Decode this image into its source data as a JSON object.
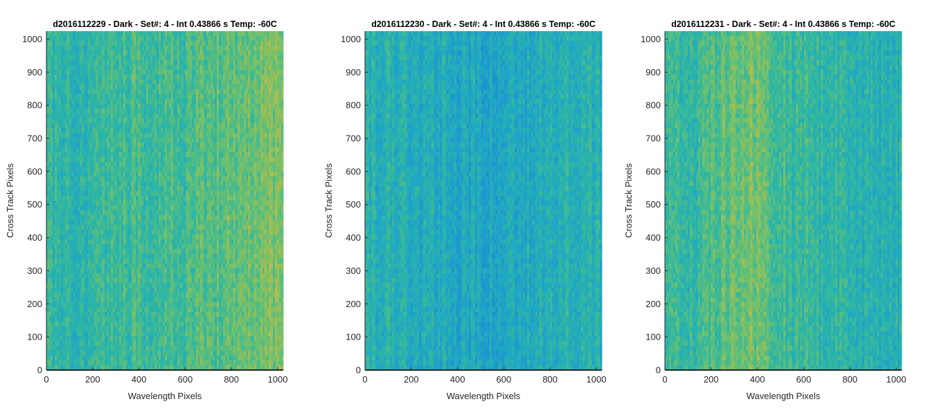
{
  "chart_data": [
    {
      "type": "heatmap",
      "title": "d2016112229 - Dark - Set#: 4 - Int 0.43866 s Temp: -60C",
      "xlabel": "Wavelength Pixels",
      "ylabel": "Cross Track Pixels",
      "xlim": [
        0,
        1024
      ],
      "ylim": [
        0,
        1024
      ],
      "xticks": [
        "0",
        "200",
        "400",
        "600",
        "800",
        "1000"
      ],
      "yticks": [
        "0",
        "100",
        "200",
        "300",
        "400",
        "500",
        "600",
        "700",
        "800",
        "900",
        "1000"
      ],
      "column_profile": {
        "x": [
          0,
          100,
          200,
          300,
          400,
          500,
          600,
          700,
          800,
          900,
          1024
        ],
        "level": [
          0.48,
          0.47,
          0.5,
          0.52,
          0.55,
          0.56,
          0.56,
          0.6,
          0.63,
          0.66,
          0.7
        ]
      }
    },
    {
      "type": "heatmap",
      "title": "d2016112230 - Dark - Set#: 4 - Int 0.43866 s Temp: -60C",
      "xlabel": "Wavelength Pixels",
      "ylabel": "Cross Track Pixels",
      "xlim": [
        0,
        1024
      ],
      "ylim": [
        0,
        1024
      ],
      "xticks": [
        "0",
        "200",
        "400",
        "600",
        "800",
        "1000"
      ],
      "yticks": [
        "0",
        "100",
        "200",
        "300",
        "400",
        "500",
        "600",
        "700",
        "800",
        "900",
        "1000"
      ],
      "column_profile": {
        "x": [
          0,
          100,
          200,
          300,
          400,
          500,
          600,
          700,
          800,
          900,
          1024
        ],
        "level": [
          0.44,
          0.43,
          0.41,
          0.39,
          0.37,
          0.35,
          0.36,
          0.38,
          0.41,
          0.43,
          0.44
        ]
      }
    },
    {
      "type": "heatmap",
      "title": "d2016112231 - Dark - Set#: 4 - Int 0.43866 s Temp: -60C",
      "xlabel": "Wavelength Pixels",
      "ylabel": "Cross Track Pixels",
      "xlim": [
        0,
        1024
      ],
      "ylim": [
        0,
        1024
      ],
      "xticks": [
        "0",
        "200",
        "400",
        "600",
        "800",
        "1000"
      ],
      "yticks": [
        "0",
        "100",
        "200",
        "300",
        "400",
        "500",
        "600",
        "700",
        "800",
        "900",
        "1000"
      ],
      "column_profile": {
        "x": [
          0,
          100,
          200,
          300,
          350,
          400,
          500,
          600,
          700,
          800,
          900,
          1024
        ],
        "level": [
          0.5,
          0.51,
          0.56,
          0.66,
          0.7,
          0.66,
          0.57,
          0.52,
          0.48,
          0.45,
          0.43,
          0.42
        ]
      }
    }
  ],
  "colormap": [
    "#0072bd",
    "#1a8fd0",
    "#1fa5c8",
    "#2eb7a3",
    "#6ec06e",
    "#b6bd4b",
    "#e8b93a"
  ]
}
